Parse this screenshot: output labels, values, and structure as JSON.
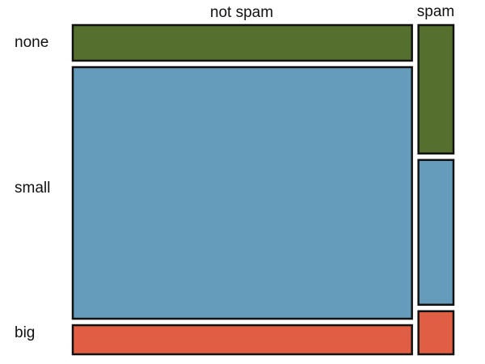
{
  "chart_data": {
    "type": "mosaic",
    "columns": [
      {
        "label": "not spam",
        "total": 3554,
        "rows": [
          400,
          2827,
          327
        ]
      },
      {
        "label": "spam",
        "total": 367,
        "rows": [
          149,
          168,
          50
        ]
      }
    ],
    "rows": [
      {
        "label": "none",
        "color": "#55702e"
      },
      {
        "label": "small",
        "color": "#659cbc"
      },
      {
        "label": "big",
        "color": "#e05e43"
      }
    ]
  }
}
